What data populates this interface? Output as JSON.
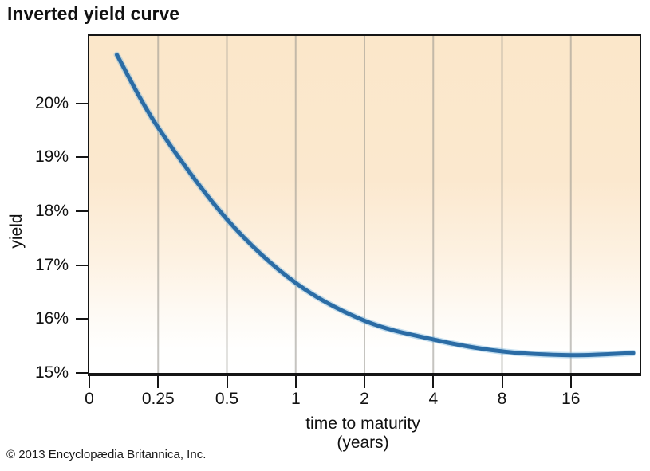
{
  "title": "Inverted yield curve",
  "copyright": "© 2013 Encyclopædia Britannica, Inc.",
  "chart_data": {
    "type": "line",
    "title": "Inverted yield curve",
    "xlabel": "time to maturity",
    "xlabel_unit": "(years)",
    "ylabel": "yield",
    "x_scale": "linear from 0 to 0.25, then log2 (equal spacing per doubling)",
    "x_ticks": [
      0,
      0.25,
      0.5,
      1,
      2,
      4,
      8,
      16
    ],
    "x_tick_labels": [
      "0",
      "0.25",
      "0.5",
      "1",
      "2",
      "4",
      "8",
      "16"
    ],
    "x_units_span": 8,
    "xmax_years": 30,
    "y_ticks": [
      15,
      16,
      17,
      18,
      19,
      20
    ],
    "y_tick_labels": [
      "15%",
      "16%",
      "17%",
      "18%",
      "19%",
      "20%"
    ],
    "ylim": [
      15,
      21.25
    ],
    "grid": "vertical-only",
    "legend": "none",
    "series": [
      {
        "name": "yield curve",
        "points": [
          {
            "t": 0.1,
            "yield": 20.9
          },
          {
            "t": 0.25,
            "yield": 19.55
          },
          {
            "t": 0.5,
            "yield": 17.85
          },
          {
            "t": 1,
            "yield": 16.67
          },
          {
            "t": 2,
            "yield": 15.97
          },
          {
            "t": 4,
            "yield": 15.62
          },
          {
            "t": 8,
            "yield": 15.4
          },
          {
            "t": 16,
            "yield": 15.33
          },
          {
            "t": 30,
            "yield": 15.37
          }
        ]
      }
    ],
    "colors": {
      "line": "#2b6ca5",
      "line_halo": "rgba(125,184,224,0.45)",
      "axis": "#151515",
      "gridline": "rgba(150,147,140,0.55)",
      "plot_bg_top": "#fbe7ca",
      "plot_bg_bottom": "#ffffff"
    }
  }
}
